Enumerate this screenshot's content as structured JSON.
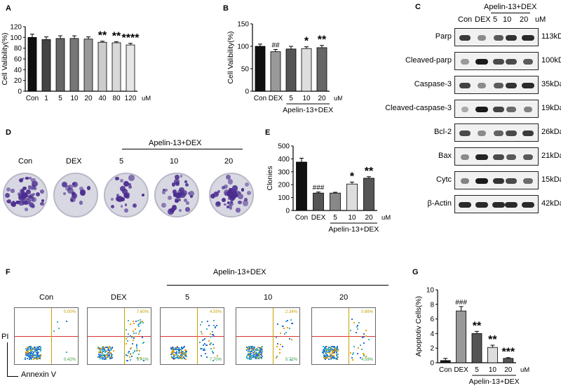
{
  "panels": {
    "A": {
      "label": "A",
      "chart_data": {
        "type": "bar",
        "ylabel": "Cell Valibility(%)",
        "unit": "uM",
        "ylim": [
          0,
          120
        ],
        "yticks": [
          "0",
          "20",
          "40",
          "60",
          "80",
          "100",
          "120"
        ],
        "categories": [
          "Con",
          "1",
          "5",
          "10",
          "20",
          "40",
          "80",
          "120"
        ],
        "values": [
          100,
          96,
          98,
          98,
          97,
          91,
          90,
          86
        ],
        "errors": [
          6,
          5,
          5,
          5,
          4,
          2,
          2,
          3
        ],
        "significance": [
          "",
          "",
          "",
          "",
          "",
          "**",
          "**",
          "****"
        ],
        "colors": [
          "#111111",
          "#444444",
          "#666666",
          "#777777",
          "#999999",
          "#cccccc",
          "#d9d9d9",
          "#e6e6e6"
        ]
      }
    },
    "B": {
      "label": "B",
      "chart_data": {
        "type": "bar",
        "ylabel": "Cell Valibility(%)",
        "unit": "uM",
        "ylim": [
          0,
          150
        ],
        "yticks": [
          "0",
          "50",
          "100",
          "150"
        ],
        "categories": [
          "Con",
          "DEX",
          "5",
          "10",
          "20"
        ],
        "values": [
          100,
          88,
          94,
          95,
          97
        ],
        "errors": [
          5,
          5,
          6,
          4,
          5
        ],
        "significance": [
          "",
          "##",
          "",
          "*",
          "**"
        ],
        "colors": [
          "#111111",
          "#999999",
          "#555555",
          "#dddddd",
          "#666666"
        ],
        "group_label": "Apelin-13+DEX"
      }
    },
    "C": {
      "label": "C",
      "header_labels": [
        "Con",
        "DEX",
        "5",
        "10",
        "20",
        "uM"
      ],
      "group_label": "Apelin-13+DEX",
      "rows": [
        {
          "name": "Parp",
          "kda": "113kDa",
          "bands": [
            0.8,
            0.3,
            0.6,
            0.85,
            0.9
          ]
        },
        {
          "name": "Cleaved-parp",
          "kda": "100kDa",
          "bands": [
            0.2,
            1.0,
            0.7,
            0.7,
            0.6
          ]
        },
        {
          "name": "Caspase-3",
          "kda": "35kDa",
          "bands": [
            0.75,
            0.3,
            0.6,
            0.85,
            0.9
          ]
        },
        {
          "name": "Cleaved-caspase-3",
          "kda": "19kDa",
          "bands": [
            0.1,
            1.0,
            0.75,
            0.5,
            0.35
          ]
        },
        {
          "name": "Bcl-2",
          "kda": "26kDa",
          "bands": [
            0.7,
            0.3,
            0.55,
            0.7,
            0.8
          ]
        },
        {
          "name": "Bax",
          "kda": "21kDa",
          "bands": [
            0.3,
            0.95,
            0.7,
            0.6,
            0.6
          ]
        },
        {
          "name": "Cytc",
          "kda": "15kDa",
          "bands": [
            0.35,
            1.0,
            0.85,
            0.7,
            0.5
          ]
        },
        {
          "name": "β-Actin",
          "kda": "42kDa",
          "bands": [
            0.9,
            0.9,
            0.9,
            0.9,
            0.9
          ]
        }
      ]
    },
    "D": {
      "label": "D",
      "dish_labels": [
        "Con",
        "DEX",
        "5",
        "10",
        "20"
      ],
      "group_label": "Apelin-13+DEX",
      "colony_density": [
        0.9,
        0.25,
        0.4,
        0.6,
        0.75
      ]
    },
    "E": {
      "label": "E",
      "chart_data": {
        "type": "bar",
        "ylabel": "Clonies",
        "unit": "uM",
        "ylim": [
          0,
          500
        ],
        "yticks": [
          "0",
          "100",
          "200",
          "300",
          "400",
          "500"
        ],
        "categories": [
          "Con",
          "DEX",
          "5",
          "10",
          "20"
        ],
        "values": [
          375,
          135,
          135,
          205,
          250
        ],
        "errors": [
          30,
          8,
          6,
          15,
          12
        ],
        "significance": [
          "",
          "###",
          "",
          "*",
          "**"
        ],
        "colors": [
          "#111111",
          "#555555",
          "#888888",
          "#dddddd",
          "#555555"
        ],
        "group_label": "Apelin-13+DEX"
      }
    },
    "F": {
      "label": "F",
      "plot_labels": [
        "Con",
        "DEX",
        "5",
        "10",
        "20"
      ],
      "group_label": "Apelin-13+DEX",
      "y_axis_label": "PI",
      "x_axis_label": "Annexin V",
      "upper_right": [
        "0.00%",
        "7.60%",
        "4.55%",
        "2.34%",
        "0.66%"
      ],
      "lower_right": [
        "0.42%",
        "9.41%",
        "7.70%",
        "5.72%",
        "4.59%"
      ],
      "apoptotic_fraction": [
        0.05,
        0.9,
        0.7,
        0.5,
        0.35
      ]
    },
    "G": {
      "label": "G",
      "chart_data": {
        "type": "bar",
        "ylabel": "Apoptotiv Cells(%)",
        "unit": "uM",
        "ylim": [
          0,
          10
        ],
        "yticks": [
          "0",
          "2",
          "4",
          "6",
          "8",
          "10"
        ],
        "categories": [
          "Con",
          "DEX",
          "5",
          "10",
          "20"
        ],
        "values": [
          0.3,
          7.1,
          4.0,
          2.1,
          0.6
        ],
        "errors": [
          0.3,
          0.6,
          0.3,
          0.3,
          0.1
        ],
        "significance": [
          "",
          "###",
          "**",
          "**",
          "***"
        ],
        "colors": [
          "#111111",
          "#999999",
          "#555555",
          "#dddddd",
          "#555555"
        ],
        "group_label": "Apelin-13+DEX"
      }
    }
  }
}
